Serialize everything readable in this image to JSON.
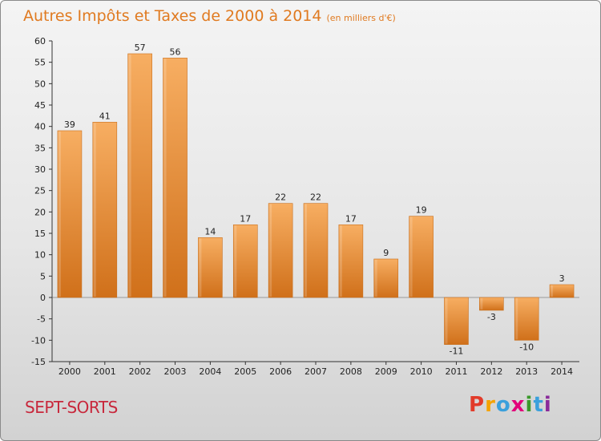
{
  "title": "Autres Impôts et Taxes de 2000 à 2014",
  "subtitle": "(en milliers d'€)",
  "commune": "SEPT-SORTS",
  "logo": {
    "letters": [
      "P",
      "r",
      "o",
      "x",
      "i",
      "t",
      "i"
    ],
    "colors": [
      "#e23b2a",
      "#f5a300",
      "#3aa0dc",
      "#e2007a",
      "#3a9a2a",
      "#3aa0dc",
      "#8a2a9a"
    ]
  },
  "colors": {
    "bar_light": "#f6a85a",
    "bar_dark": "#d5761c",
    "title": "#e07a20",
    "commune": "#c8283c"
  },
  "chart_data": {
    "type": "bar",
    "title": "Autres Impôts et Taxes de 2000 à 2014",
    "subtitle": "(en milliers d'€)",
    "categories": [
      "2000",
      "2001",
      "2002",
      "2003",
      "2004",
      "2005",
      "2006",
      "2007",
      "2008",
      "2009",
      "2010",
      "2011",
      "2012",
      "2013",
      "2014"
    ],
    "values": [
      39,
      41,
      57,
      56,
      14,
      17,
      22,
      22,
      17,
      9,
      19,
      -11,
      -3,
      -10,
      3
    ],
    "value_labels": [
      "39",
      "41",
      "57",
      "56",
      "14",
      "17",
      "22",
      "22",
      "17",
      "9",
      "19",
      "-11",
      "-3",
      "-10",
      "3"
    ],
    "y_ticks": [
      60,
      55,
      50,
      45,
      40,
      35,
      30,
      25,
      20,
      15,
      10,
      5,
      0,
      -5,
      -10,
      -15
    ],
    "y_tick_labels": [
      "60",
      "55",
      "50",
      "45",
      "40",
      "35",
      "30",
      "25",
      "20",
      "15",
      "10",
      "5",
      "0",
      "-5",
      "-10",
      "-15"
    ],
    "ylim": [
      -15,
      60
    ],
    "grid": false,
    "legend": "none"
  }
}
